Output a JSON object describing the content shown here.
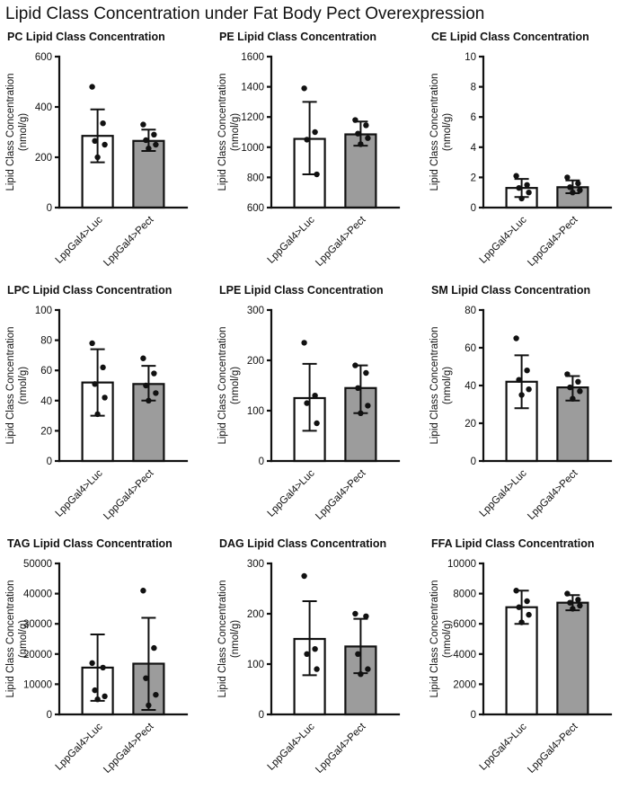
{
  "title": "Lipid Class Concentration under Fat Body Pect Overexpression",
  "colors": {
    "bar_fill": [
      "#ffffff",
      "#9c9c9c"
    ],
    "axis": "#111111",
    "point": "#111111"
  },
  "chart_data": [
    {
      "type": "bar",
      "title": "PC Lipid Class Concentration",
      "ylabel": "Lipid Class Concentration",
      "ylabel2": "(nmol/g)",
      "ylim": [
        0,
        600
      ],
      "yticks": [
        0,
        200,
        400,
        600
      ],
      "categories": [
        "LppGal4>Luc",
        "LppGal4>Pect"
      ],
      "series": [
        {
          "name": "LppGal4>Luc",
          "mean": 285,
          "err": [
            180,
            390
          ],
          "points": [
            480,
            335,
            265,
            250,
            200
          ]
        },
        {
          "name": "LppGal4>Pect",
          "mean": 265,
          "err": [
            225,
            310
          ],
          "points": [
            330,
            290,
            268,
            250,
            235
          ]
        }
      ]
    },
    {
      "type": "bar",
      "title": "PE Lipid Class Concentration",
      "ylabel": "Lipid Class Concentration",
      "ylabel2": "(nmol/g)",
      "ylim": [
        600,
        1600
      ],
      "yticks": [
        600,
        800,
        1000,
        1200,
        1400,
        1600
      ],
      "categories": [
        "LppGal4>Luc",
        "LppGal4>Pect"
      ],
      "series": [
        {
          "name": "LppGal4>Luc",
          "mean": 1055,
          "err": [
            820,
            1300
          ],
          "points": [
            1390,
            1100,
            1050,
            820
          ]
        },
        {
          "name": "LppGal4>Pect",
          "mean": 1085,
          "err": [
            1010,
            1170
          ],
          "points": [
            1180,
            1145,
            1090,
            1060,
            1020
          ]
        }
      ]
    },
    {
      "type": "bar",
      "title": "CE Lipid Class Concentration",
      "ylabel": "Lipid Class Concentration",
      "ylabel2": "(nmol/g)",
      "ylim": [
        0,
        10
      ],
      "yticks": [
        0,
        2,
        4,
        6,
        8,
        10
      ],
      "categories": [
        "LppGal4>Luc",
        "LppGal4>Pect"
      ],
      "series": [
        {
          "name": "LppGal4>Luc",
          "mean": 1.3,
          "err": [
            0.7,
            1.9
          ],
          "points": [
            2.1,
            1.5,
            1.3,
            1.0,
            0.6
          ]
        },
        {
          "name": "LppGal4>Pect",
          "mean": 1.35,
          "err": [
            0.95,
            1.8
          ],
          "points": [
            2.0,
            1.6,
            1.35,
            1.15,
            1.0
          ]
        }
      ]
    },
    {
      "type": "bar",
      "title": "LPC Lipid Class Concentration",
      "ylabel": "Lipid Class Concentration",
      "ylabel2": "(nmol/g)",
      "ylim": [
        0,
        100
      ],
      "yticks": [
        0,
        20,
        40,
        60,
        80,
        100
      ],
      "categories": [
        "LppGal4>Luc",
        "LppGal4>Pect"
      ],
      "series": [
        {
          "name": "LppGal4>Luc",
          "mean": 52,
          "err": [
            30,
            74
          ],
          "points": [
            78,
            62,
            51,
            42,
            31
          ]
        },
        {
          "name": "LppGal4>Pect",
          "mean": 51,
          "err": [
            40,
            63
          ],
          "points": [
            68,
            58,
            50,
            45,
            40
          ]
        }
      ]
    },
    {
      "type": "bar",
      "title": "LPE Lipid Class Concentration",
      "ylabel": "Lipid Class Concentration",
      "ylabel2": "(nmol/g)",
      "ylim": [
        0,
        300
      ],
      "yticks": [
        0,
        100,
        200,
        300
      ],
      "categories": [
        "LppGal4>Luc",
        "LppGal4>Pect"
      ],
      "series": [
        {
          "name": "LppGal4>Luc",
          "mean": 125,
          "err": [
            60,
            193
          ],
          "points": [
            235,
            130,
            115,
            75
          ]
        },
        {
          "name": "LppGal4>Pect",
          "mean": 145,
          "err": [
            95,
            190
          ],
          "points": [
            190,
            175,
            145,
            110,
            95
          ]
        }
      ]
    },
    {
      "type": "bar",
      "title": "SM Lipid Class Concentration",
      "ylabel": "Lipid Class Concentration",
      "ylabel2": "(nmol/g)",
      "ylim": [
        0,
        80
      ],
      "yticks": [
        0,
        20,
        40,
        60,
        80
      ],
      "categories": [
        "LppGal4>Luc",
        "LppGal4>Pect"
      ],
      "series": [
        {
          "name": "LppGal4>Luc",
          "mean": 42,
          "err": [
            28,
            56
          ],
          "points": [
            65,
            48,
            43,
            38,
            35
          ]
        },
        {
          "name": "LppGal4>Pect",
          "mean": 39,
          "err": [
            32,
            45
          ],
          "points": [
            46,
            42,
            39,
            37,
            33
          ]
        }
      ]
    },
    {
      "type": "bar",
      "title": "TAG Lipid Class Concentration",
      "ylabel": "Lipid Class Concentration",
      "ylabel2": "(nmol/g)",
      "ylim": [
        0,
        50000
      ],
      "yticks": [
        0,
        10000,
        20000,
        30000,
        40000,
        50000
      ],
      "categories": [
        "LppGal4>Luc",
        "LppGal4>Pect"
      ],
      "series": [
        {
          "name": "LppGal4>Luc",
          "mean": 15500,
          "err": [
            4500,
            26500
          ],
          "points": [
            17000,
            15500,
            8000,
            6000,
            5000
          ]
        },
        {
          "name": "LppGal4>Pect",
          "mean": 16800,
          "err": [
            1500,
            32000
          ],
          "points": [
            41000,
            22000,
            12000,
            6500,
            3000
          ]
        }
      ]
    },
    {
      "type": "bar",
      "title": "DAG Lipid Class Concentration",
      "ylabel": "Lipid Class Concentration",
      "ylabel2": "(nmol/g)",
      "ylim": [
        0,
        300
      ],
      "yticks": [
        0,
        100,
        200,
        300
      ],
      "categories": [
        "LppGal4>Luc",
        "LppGal4>Pect"
      ],
      "series": [
        {
          "name": "LppGal4>Luc",
          "mean": 150,
          "err": [
            78,
            225
          ],
          "points": [
            275,
            130,
            120,
            90
          ]
        },
        {
          "name": "LppGal4>Pect",
          "mean": 135,
          "err": [
            82,
            190
          ],
          "points": [
            200,
            195,
            120,
            90,
            80
          ]
        }
      ]
    },
    {
      "type": "bar",
      "title": "FFA Lipid Class Concentration",
      "ylabel": "Lipid Class Concentration",
      "ylabel2": "(nmol/g)",
      "ylim": [
        0,
        10000
      ],
      "yticks": [
        0,
        2000,
        4000,
        6000,
        8000,
        10000
      ],
      "categories": [
        "LppGal4>Luc",
        "LppGal4>Pect"
      ],
      "series": [
        {
          "name": "LppGal4>Luc",
          "mean": 7100,
          "err": [
            6000,
            8200
          ],
          "points": [
            8200,
            7500,
            7100,
            6600,
            6100
          ]
        },
        {
          "name": "LppGal4>Pect",
          "mean": 7400,
          "err": [
            6900,
            7900
          ],
          "points": [
            8000,
            7600,
            7400,
            7200,
            7000
          ]
        }
      ]
    }
  ]
}
